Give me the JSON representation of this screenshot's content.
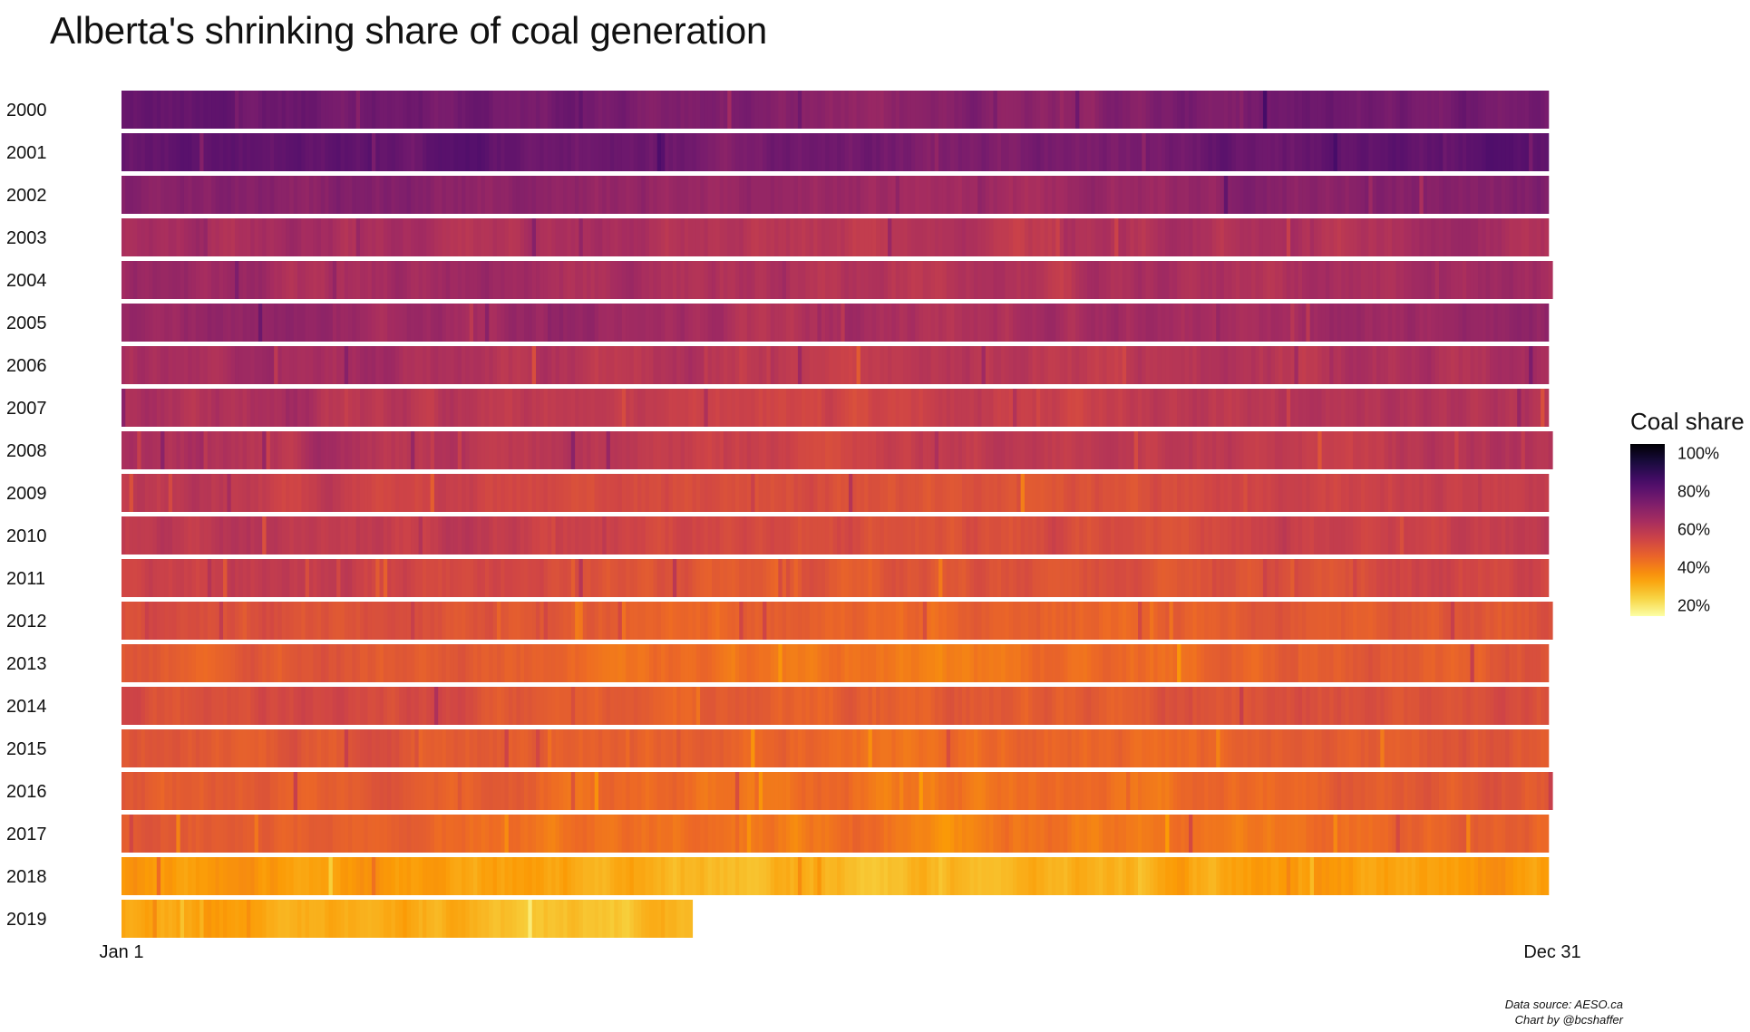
{
  "chart_data": {
    "type": "heatmap",
    "title": "Alberta's shrinking share of coal generation",
    "x_tick_labels": [
      "Jan 1",
      "Dec 31"
    ],
    "years": [
      {
        "year": "2000",
        "mean_share": 75,
        "days_shown": 365
      },
      {
        "year": "2001",
        "mean_share": 78,
        "days_shown": 365
      },
      {
        "year": "2002",
        "mean_share": 70,
        "days_shown": 365
      },
      {
        "year": "2003",
        "mean_share": 62,
        "days_shown": 365
      },
      {
        "year": "2004",
        "mean_share": 64,
        "days_shown": 366
      },
      {
        "year": "2005",
        "mean_share": 66,
        "days_shown": 365
      },
      {
        "year": "2006",
        "mean_share": 62,
        "days_shown": 365
      },
      {
        "year": "2007",
        "mean_share": 60,
        "days_shown": 365
      },
      {
        "year": "2008",
        "mean_share": 60,
        "days_shown": 366
      },
      {
        "year": "2009",
        "mean_share": 55,
        "days_shown": 365
      },
      {
        "year": "2010",
        "mean_share": 56,
        "days_shown": 365
      },
      {
        "year": "2011",
        "mean_share": 53,
        "days_shown": 365
      },
      {
        "year": "2012",
        "mean_share": 49,
        "days_shown": 366
      },
      {
        "year": "2013",
        "mean_share": 47,
        "days_shown": 365
      },
      {
        "year": "2014",
        "mean_share": 51,
        "days_shown": 365
      },
      {
        "year": "2015",
        "mean_share": 48,
        "days_shown": 365
      },
      {
        "year": "2016",
        "mean_share": 46,
        "days_shown": 366
      },
      {
        "year": "2017",
        "mean_share": 44,
        "days_shown": 365
      },
      {
        "year": "2018",
        "mean_share": 33,
        "days_shown": 365
      },
      {
        "year": "2019",
        "mean_share": 30,
        "days_shown": 146
      }
    ],
    "color_scale": {
      "name": "inferno",
      "domain": [
        15,
        105
      ],
      "stops": [
        "#000004",
        "#1b0c41",
        "#4a0c6b",
        "#781c6d",
        "#a52c60",
        "#cf4446",
        "#ed6925",
        "#fb9b06",
        "#f7d13d",
        "#fcffa4"
      ]
    },
    "legend": {
      "title": "Coal share",
      "ticks": [
        {
          "value": 100,
          "label": "100%"
        },
        {
          "value": 80,
          "label": "80%"
        },
        {
          "value": 60,
          "label": "60%"
        },
        {
          "value": 40,
          "label": "40%"
        },
        {
          "value": 20,
          "label": "20%"
        }
      ],
      "placement": "right"
    },
    "caption": [
      "Data source: AESO.ca",
      "Chart by @bcshaffer"
    ]
  }
}
